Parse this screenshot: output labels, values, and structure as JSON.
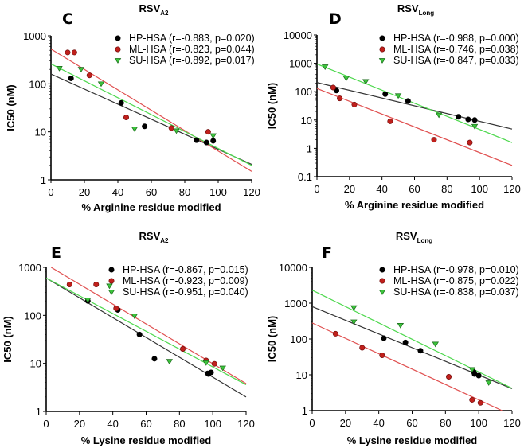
{
  "chart_data": [
    {
      "panel": "C",
      "type": "scatter",
      "title": "RSV",
      "title_subscript": "A2",
      "xlabel": "% Arginine residue modified",
      "ylabel": "IC50 (nM)",
      "xlim": [
        0,
        120
      ],
      "ylim": [
        1,
        1000
      ],
      "yscale": "log",
      "xticks": [
        0,
        20,
        40,
        60,
        80,
        100,
        120
      ],
      "yticks": [
        1,
        10,
        100,
        1000
      ],
      "ytick_labels": [
        "1",
        "10",
        "100",
        "1000"
      ],
      "grid": false,
      "legend_position": "top-right",
      "series": [
        {
          "name": "HP-HSA",
          "stats": "(r=-0.883, p=0.020)",
          "color": "#000000",
          "marker": "circle",
          "points": [
            [
              12,
              130
            ],
            [
              42,
              40
            ],
            [
              56,
              13
            ],
            [
              87,
              6.7
            ],
            [
              93,
              6
            ],
            [
              97,
              6.5
            ]
          ],
          "fit": [
            [
              0,
              160
            ],
            [
              120,
              2.1
            ]
          ]
        },
        {
          "name": "ML-HSA",
          "stats": "(r=-0.823, p=0.044)",
          "color": "#c0201c",
          "marker": "circle",
          "points": [
            [
              10,
              450
            ],
            [
              14,
              450
            ],
            [
              23,
              150
            ],
            [
              45,
              20
            ],
            [
              72,
              12
            ],
            [
              94,
              10
            ]
          ],
          "fit": [
            [
              0,
              530
            ],
            [
              120,
              1.5
            ]
          ]
        },
        {
          "name": "SU-HSA",
          "stats": "(r=-0.892, p=0.017)",
          "color": "#3cc43c",
          "marker": "triangle-down",
          "points": [
            [
              5,
              210
            ],
            [
              18,
              200
            ],
            [
              30,
              100
            ],
            [
              50,
              11.5
            ],
            [
              75,
              10.5
            ],
            [
              97,
              8.3
            ]
          ],
          "fit": [
            [
              0,
              260
            ],
            [
              120,
              2.0
            ]
          ]
        }
      ]
    },
    {
      "panel": "D",
      "type": "scatter",
      "title": "RSV",
      "title_subscript": "Long",
      "xlabel": "% Arginine residue modified",
      "ylabel": "IC50 (nM)",
      "xlim": [
        0,
        120
      ],
      "ylim": [
        0.1,
        10000
      ],
      "yscale": "log",
      "xticks": [
        0,
        20,
        40,
        60,
        80,
        100,
        120
      ],
      "yticks": [
        0.1,
        1,
        10,
        100,
        1000,
        10000
      ],
      "ytick_labels": [
        "0.1",
        "1",
        "10",
        "100",
        "1000",
        "10000"
      ],
      "grid": false,
      "legend_position": "top-right",
      "series": [
        {
          "name": "HP-HSA",
          "stats": "(r=-0.988, p=0.000)",
          "color": "#000000",
          "marker": "circle",
          "points": [
            [
              12,
              110
            ],
            [
              42,
              82
            ],
            [
              56,
              47
            ],
            [
              87,
              13
            ],
            [
              93,
              10.5
            ],
            [
              97,
              10
            ]
          ],
          "fit": [
            [
              0,
              210
            ],
            [
              120,
              4.8
            ]
          ]
        },
        {
          "name": "ML-HSA",
          "stats": "(r=-0.746, p=0.038)",
          "color": "#c0201c",
          "marker": "circle",
          "points": [
            [
              10,
              140
            ],
            [
              14,
              58
            ],
            [
              23,
              35
            ],
            [
              45,
              9
            ],
            [
              72,
              2
            ],
            [
              94,
              1.6
            ]
          ],
          "fit": [
            [
              0,
              130
            ],
            [
              120,
              0.25
            ]
          ]
        },
        {
          "name": "SU-HSA",
          "stats": "(r=-0.847, p=0.033)",
          "color": "#3cc43c",
          "marker": "triangle-down",
          "points": [
            [
              5,
              750
            ],
            [
              18,
              300
            ],
            [
              30,
              230
            ],
            [
              50,
              72
            ],
            [
              75,
              15
            ],
            [
              97,
              6
            ]
          ],
          "fit": [
            [
              0,
              950
            ],
            [
              120,
              1.6
            ]
          ]
        }
      ]
    },
    {
      "panel": "E",
      "type": "scatter",
      "title": "RSV",
      "title_subscript": "A2",
      "xlabel": "% Lysine residue modified",
      "ylabel": "IC50 (nM)",
      "xlim": [
        0,
        120
      ],
      "ylim": [
        1,
        1000
      ],
      "yscale": "log",
      "xticks": [
        0,
        20,
        40,
        60,
        80,
        100,
        120
      ],
      "yticks": [
        1,
        10,
        100,
        1000
      ],
      "ytick_labels": [
        "1",
        "10",
        "100",
        "1000"
      ],
      "grid": false,
      "legend_position": "top-right",
      "series": [
        {
          "name": "HP-HSA",
          "stats": "(r=-0.867, p=0.015)",
          "color": "#000000",
          "marker": "circle",
          "points": [
            [
              25,
              200
            ],
            [
              43,
              130
            ],
            [
              56,
              40
            ],
            [
              65,
              12.5
            ],
            [
              97,
              6.2
            ],
            [
              97.5,
              6
            ],
            [
              99,
              6.5
            ]
          ],
          "fit": [
            [
              0,
              600
            ],
            [
              120,
              2.0
            ]
          ]
        },
        {
          "name": "ML-HSA",
          "stats": "(r=-0.923, p=0.009)",
          "color": "#c0201c",
          "marker": "circle",
          "points": [
            [
              14,
              440
            ],
            [
              30,
              440
            ],
            [
              42,
              140
            ],
            [
              82,
              20
            ],
            [
              96,
              11.5
            ],
            [
              101,
              9.8
            ]
          ],
          "fit": [
            [
              3,
              1000
            ],
            [
              120,
              3.8
            ]
          ]
        },
        {
          "name": "SU-HSA",
          "stats": "(r=-0.951, p=0.040)",
          "color": "#3cc43c",
          "marker": "triangle-down",
          "points": [
            [
              25,
              210
            ],
            [
              38,
              410
            ],
            [
              53,
              97
            ],
            [
              74,
              11
            ],
            [
              96,
              10.3
            ],
            [
              106,
              8
            ]
          ],
          "fit": [
            [
              0,
              600
            ],
            [
              120,
              3.6
            ]
          ]
        }
      ]
    },
    {
      "panel": "F",
      "type": "scatter",
      "title": "RSV",
      "title_subscript": "Long",
      "xlabel": "% Lysine residue modified",
      "ylabel": "IC50 (nM)",
      "xlim": [
        0,
        120
      ],
      "ylim": [
        1,
        10000
      ],
      "yscale": "log",
      "xticks": [
        0,
        20,
        40,
        60,
        80,
        100,
        120
      ],
      "yticks": [
        1,
        10,
        100,
        1000,
        10000
      ],
      "ytick_labels": [
        "1",
        "10",
        "100",
        "1000",
        "10000"
      ],
      "grid": false,
      "legend_position": "top-right",
      "series": [
        {
          "name": "HP-HSA",
          "stats": "(r=-0.978, p=0.010)",
          "color": "#000000",
          "marker": "circle",
          "points": [
            [
              43,
              105
            ],
            [
              56,
              80
            ],
            [
              65,
              47
            ],
            [
              97,
              12
            ],
            [
              97.5,
              10.5
            ],
            [
              100,
              9.5
            ]
          ],
          "fit": [
            [
              0,
              800
            ],
            [
              120,
              4.1
            ]
          ]
        },
        {
          "name": "ML-HSA",
          "stats": "(r=-0.875, p=0.022)",
          "color": "#c0201c",
          "marker": "circle",
          "points": [
            [
              14,
              140
            ],
            [
              30,
              57
            ],
            [
              42,
              35
            ],
            [
              82,
              8.8
            ],
            [
              96,
              2
            ],
            [
              101,
              1.65
            ]
          ],
          "fit": [
            [
              0,
              280
            ],
            [
              114,
              1
            ]
          ]
        },
        {
          "name": "SU-HSA",
          "stats": "(r=-0.838, p=0.037)",
          "color": "#3cc43c",
          "marker": "triangle-down",
          "points": [
            [
              25,
              750
            ],
            [
              25,
              300
            ],
            [
              53,
              240
            ],
            [
              74,
              72
            ],
            [
              96,
              14
            ],
            [
              106,
              6
            ]
          ],
          "fit": [
            [
              0,
              2300
            ],
            [
              120,
              4.2
            ]
          ]
        }
      ]
    }
  ]
}
